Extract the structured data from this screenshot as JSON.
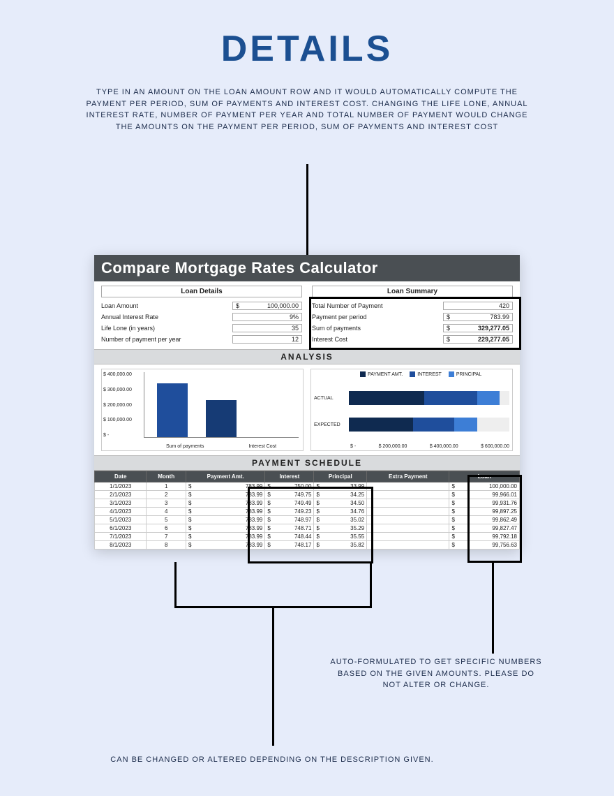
{
  "page": {
    "bg": "#e6ecfa",
    "title": "DETAILS",
    "title_color": "#1b4f91",
    "intro": "TYPE IN AN AMOUNT ON THE LOAN AMOUNT ROW AND IT WOULD AUTOMATICALLY COMPUTE THE PAYMENT PER PERIOD, SUM OF PAYMENTS AND INTEREST COST. CHANGING THE LIFE LONE, ANNUAL INTEREST RATE, NUMBER OF PAYMENT PER YEAR AND TOTAL NUMBER OF PAYMENT WOULD CHANGE THE AMOUNTS ON THE PAYMENT PER PERIOD, SUM OF PAYMENTS AND INTEREST COST"
  },
  "sheet": {
    "title": "Compare Mortgage Rates Calculator",
    "headers": {
      "left": "Loan Details",
      "right": "Loan Summary"
    },
    "loan_details": [
      {
        "k": "Loan Amount",
        "cur": "$",
        "v": "100,000.00"
      },
      {
        "k": "Annual Interest Rate",
        "cur": "",
        "v": "9%"
      },
      {
        "k": "Life Lone (in years)",
        "cur": "",
        "v": "35"
      },
      {
        "k": "Number of payment per year",
        "cur": "",
        "v": "12"
      }
    ],
    "loan_summary": [
      {
        "k": "Total Number of Payment",
        "cur": "",
        "v": "420",
        "bold": false
      },
      {
        "k": "Payment per period",
        "cur": "$",
        "v": "783.99",
        "bold": false
      },
      {
        "k": "Sum of payments",
        "cur": "$",
        "v": "329,277.05",
        "bold": true
      },
      {
        "k": "Interest Cost",
        "cur": "$",
        "v": "229,277.05",
        "bold": true
      }
    ],
    "analysis_label": "ANALYSIS",
    "schedule_label": "PAYMENT SCHEDULE"
  },
  "chart_left": {
    "type": "bar",
    "y_ticks": [
      "$ 400,000.00",
      "$ 300,000.00",
      "$ 200,000.00",
      "$ 100,000.00",
      "$ -"
    ],
    "ymax": 400000,
    "bars": [
      {
        "label": "Sum of payments",
        "value": 329277,
        "color": "#1f4e9c"
      },
      {
        "label": "Interest Cost",
        "value": 229277,
        "color": "#163b75"
      }
    ]
  },
  "chart_right": {
    "type": "stacked-hbar",
    "legend": [
      {
        "label": "PAYMENT AMT.",
        "color": "#0f2a50"
      },
      {
        "label": "INTEREST",
        "color": "#1f4e9c"
      },
      {
        "label": "PRINCIPAL",
        "color": "#3d7ed6"
      }
    ],
    "xmax": 700000,
    "x_ticks": [
      "$ -",
      "$ 200,000.00",
      "$ 400,000.00",
      "$ 600,000.00"
    ],
    "rows": [
      {
        "label": "ACTUAL",
        "segs": [
          {
            "v": 329277,
            "c": "#0f2a50"
          },
          {
            "v": 229277,
            "c": "#1f4e9c"
          },
          {
            "v": 100000,
            "c": "#3d7ed6"
          }
        ]
      },
      {
        "label": "EXPECTED",
        "segs": [
          {
            "v": 280000,
            "c": "#0f2a50"
          },
          {
            "v": 180000,
            "c": "#1f4e9c"
          },
          {
            "v": 100000,
            "c": "#3d7ed6"
          }
        ]
      }
    ]
  },
  "schedule": {
    "columns": [
      "Date",
      "Month",
      "Payment Amt.",
      "Interest",
      "Principal",
      "Extra Payment",
      "Loan"
    ],
    "rows": [
      [
        "1/1/2023",
        "1",
        "783.99",
        "750.00",
        "33.99",
        "",
        "100,000.00"
      ],
      [
        "2/1/2023",
        "2",
        "783.99",
        "749.75",
        "34.25",
        "",
        "99,966.01"
      ],
      [
        "3/1/2023",
        "3",
        "783.99",
        "749.49",
        "34.50",
        "",
        "99,931.76"
      ],
      [
        "4/1/2023",
        "4",
        "783.99",
        "749.23",
        "34.76",
        "",
        "99,897.25"
      ],
      [
        "5/1/2023",
        "5",
        "783.99",
        "748.97",
        "35.02",
        "",
        "99,862.49"
      ],
      [
        "6/1/2023",
        "6",
        "783.99",
        "748.71",
        "35.29",
        "",
        "99,827.47"
      ],
      [
        "7/1/2023",
        "7",
        "783.99",
        "748.44",
        "35.55",
        "",
        "99,792.18"
      ],
      [
        "8/1/2023",
        "8",
        "783.99",
        "748.17",
        "35.82",
        "",
        "99,756.63"
      ]
    ]
  },
  "annotations": {
    "right": "AUTO-FORMULATED TO GET SPECIFIC NUMBERS BASED ON THE GIVEN AMOUNTS. PLEASE DO NOT ALTER OR CHANGE.",
    "bottom": "CAN BE CHANGED OR ALTERED DEPENDING ON THE DESCRIPTION GIVEN."
  },
  "colors": {
    "header_dark": "#4a4f53",
    "grid": "#cccccc",
    "blue1": "#0f2a50",
    "blue2": "#1f4e9c",
    "blue3": "#3d7ed6"
  }
}
